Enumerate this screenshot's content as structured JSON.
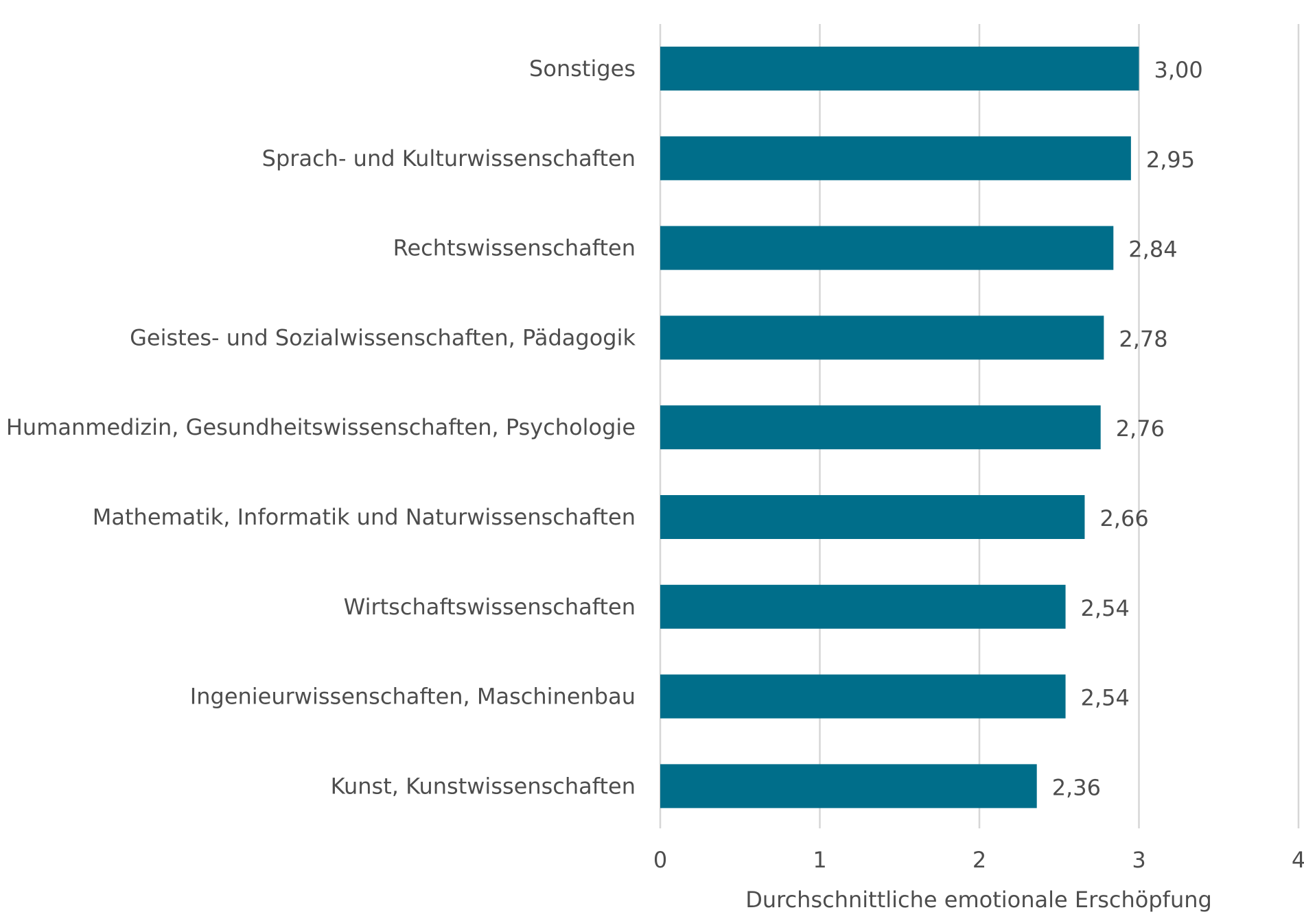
{
  "chart_data": {
    "type": "bar",
    "orientation": "horizontal",
    "categories": [
      "Sonstiges",
      "Sprach- und Kulturwissenschaften",
      "Rechtswissenschaften",
      "Geistes- und Sozialwissenschaften, Pädagogik",
      "Humanmedizin, Gesundheitswissenschaften, Psychologie",
      "Mathematik, Informatik und Naturwissenschaften",
      "Wirtschaftswissenschaften",
      "Ingenieurwissenschaften, Maschinenbau",
      "Kunst, Kunstwissenschaften"
    ],
    "values": [
      3.0,
      2.95,
      2.84,
      2.78,
      2.76,
      2.66,
      2.54,
      2.54,
      2.36
    ],
    "value_labels": [
      "3,00",
      "2,95",
      "2,84",
      "2,78",
      "2,76",
      "2,66",
      "2,54",
      "2,54",
      "2,36"
    ],
    "xlabel": "Durchschnittliche emotionale Erschöpfung",
    "ylabel": "",
    "xlim": [
      0,
      4
    ],
    "xticks": [
      0,
      1,
      2,
      3,
      4
    ],
    "xtick_labels": [
      "0",
      "1",
      "2",
      "3",
      "4"
    ],
    "grid": "vertical",
    "legend": "none",
    "colors": {
      "bar": "#006e8a",
      "grid": "#d6d6d6",
      "text": "#4d4d4d"
    }
  }
}
